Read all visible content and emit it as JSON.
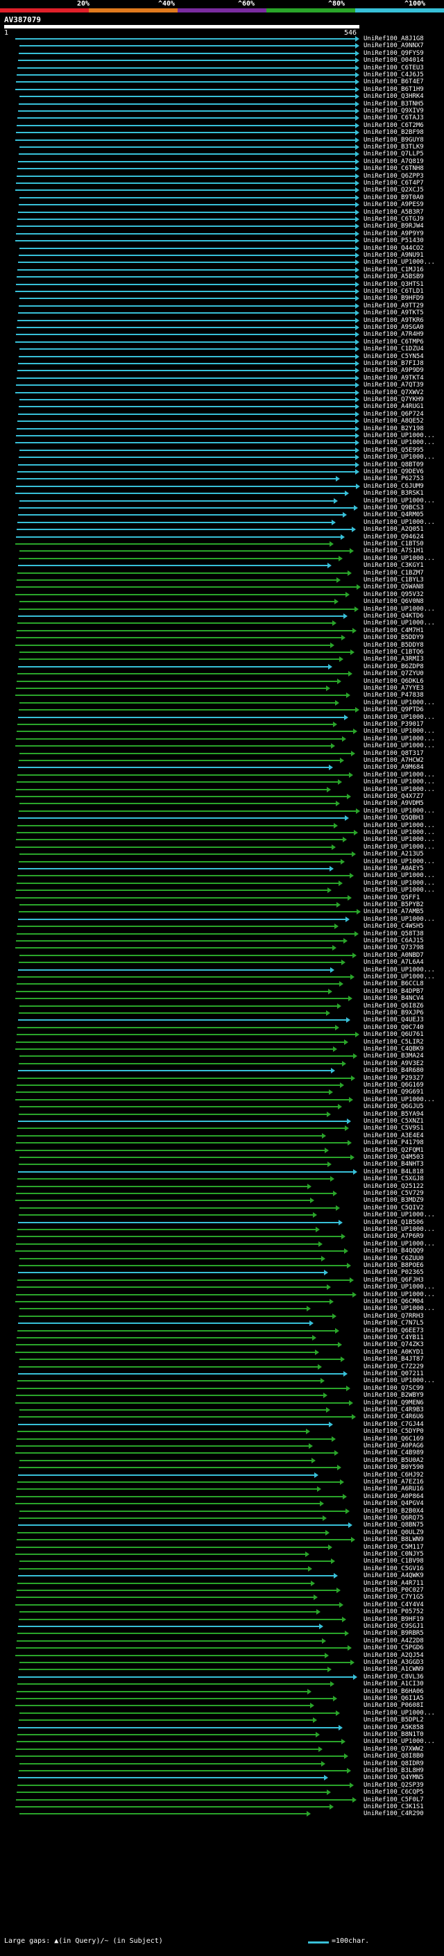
{
  "legend": {
    "labels": [
      "20%",
      "^40%",
      "^60%",
      "^80%",
      "^100%"
    ],
    "colors": [
      "#e0202a",
      "#e07a1e",
      "#7a2ca0",
      "#2aa52a",
      "#38c0d8"
    ]
  },
  "query": {
    "title": "AV387079",
    "start": "1",
    "end": "546"
  },
  "hit_colors": {
    "high": "#38c0d8",
    "mid": "#2aa52a"
  },
  "hits": [
    "UniRef100_A8J1G8",
    "UniRef100_A9NNX7",
    "UniRef100_Q9FYS9",
    "UniRef100_O04014",
    "UniRef100_C6TEU3",
    "UniRef100_C4J6J5",
    "UniRef100_B6T4E7",
    "UniRef100_B6T1H9",
    "UniRef100_Q3HRK4",
    "UniRef100_B3TNH5",
    "UniRef100_Q9XIV9",
    "UniRef100_C6TAJ3",
    "UniRef100_C6T2M6",
    "UniRef100_B2BF98",
    "UniRef100_B9GUY8",
    "UniRef100_B3TLK9",
    "UniRef100_Q7LLP5",
    "UniRef100_A7Q819",
    "UniRef100_C6TNH8",
    "UniRef100_Q6ZPP3",
    "UniRef100_C6T4P7",
    "UniRef100_Q2XCJ5",
    "UniRef100_B9T0A0",
    "UniRef100_A9PES9",
    "UniRef100_A5B3R7",
    "UniRef100_C6TGJ9",
    "UniRef100_B9RJW4",
    "UniRef100_A9P9Y9",
    "UniRef100_P51430",
    "UniRef100_Q44CO2",
    "UniRef100_A9NU91",
    "UniRef100_UP1000...",
    "UniRef100_C1MJ16",
    "UniRef100_A5BSB9",
    "UniRef100_Q3HTS1",
    "UniRef100_C6TLD1",
    "UniRef100_B9HFD9",
    "UniRef100_A9TT29",
    "UniRef100_A9TKT5",
    "UniRef100_A9TKR6",
    "UniRef100_A9SGA0",
    "UniRef100_A7R4H9",
    "UniRef100_C6TMP6",
    "UniRef100_C1DZU4",
    "UniRef100_C5YN54",
    "UniRef100_B7FIJ8",
    "UniRef100_A9P9D9",
    "UniRef100_A9TKT4",
    "UniRef100_A7QT39",
    "UniRef100_Q7XWV2",
    "UniRef100_Q7YKH9",
    "UniRef100_A4RUG1",
    "UniRef100_Q6P724",
    "UniRef100_A8QE52",
    "UniRef100_B2Y198",
    "UniRef100_UP1000...",
    "UniRef100_UP1000...",
    "UniRef100_Q5E995",
    "UniRef100_UP1000...",
    "UniRef100_Q8BT09",
    "UniRef100_Q9DEV6",
    "UniRef100_P62753",
    "UniRef100_C6JUM9",
    "UniRef100_B3RSK1",
    "UniRef100_UP1000...",
    "UniRef100_Q9BCS3",
    "UniRef100_Q4RM05",
    "UniRef100_UP1000...",
    "UniRef100_A2Q051",
    "UniRef100_Q94624",
    "UniRef100_C1BTS0",
    "UniRef100_A7S1H1",
    "UniRef100_UP1000...",
    "UniRef100_C3KGY1",
    "UniRef100_C1BZM7",
    "UniRef100_C1BYL3",
    "UniRef100_Q5WAN8",
    "UniRef100_Q95V32",
    "UniRef100_Q6V0N8",
    "UniRef100_UP1000...",
    "UniRef100_Q4KTD6",
    "UniRef100_UP1000...",
    "UniRef100_C4M7H1",
    "UniRef100_B5DDY9",
    "UniRef100_B5DDY8",
    "UniRef100_C1BTQ6",
    "UniRef100_A3RMI3",
    "UniRef100_B6ZDP8",
    "UniRef100_Q7ZYU0",
    "UniRef100_Q6DKL6",
    "UniRef100_A7YYE3",
    "UniRef100_P47838",
    "UniRef100_UP1000...",
    "UniRef100_Q9PTD6",
    "UniRef100_UP1000...",
    "UniRef100_P39017",
    "UniRef100_UP1000...",
    "UniRef100_UP1000...",
    "UniRef100_UP1000...",
    "UniRef100_Q8T317",
    "UniRef100_A7HCW2",
    "UniRef100_A9M684",
    "UniRef100_UP1000...",
    "UniRef100_UP1000...",
    "UniRef100_UP1000...",
    "UniRef100_Q4X7Z7",
    "UniRef100_A9VDM5",
    "UniRef100_UP1000...",
    "UniRef100_Q5QBH3",
    "UniRef100_UP1000...",
    "UniRef100_UP1000...",
    "UniRef100_UP1000...",
    "UniRef100_UP1000...",
    "UniRef100_A213U5",
    "UniRef100_UP1000...",
    "UniRef100_A0AEY5",
    "UniRef100_UP1000...",
    "UniRef100_UP1000...",
    "UniRef100_UP1000...",
    "UniRef100_Q5FF1",
    "UniRef100_B5PYB2",
    "UniRef100_A7AMB5",
    "UniRef100_UP1000...",
    "UniRef100_C4WSH5",
    "UniRef100_Q58T38",
    "UniRef100_C6AJ15",
    "UniRef100_Q73798",
    "UniRef100_A0NBD7",
    "UniRef100_A7L6A4",
    "UniRef100_UP1000...",
    "UniRef100_UP1000...",
    "UniRef100_B6CCL8",
    "UniRef100_B4DPB7",
    "UniRef100_B4NCV4",
    "UniRef100_Q6I8Z6",
    "UniRef100_B9XJP6",
    "UniRef100_Q4UEJ3",
    "UniRef100_Q0C740",
    "UniRef100_Q6U761",
    "UniRef100_C5LIR2",
    "UniRef100_C4QBK9",
    "UniRef100_B3MA24",
    "UniRef100_A9V3E2",
    "UniRef100_B4R680",
    "UniRef100_P29327",
    "UniRef100_Q6G169",
    "UniRef100_Q9G691",
    "UniRef100_UP1000...",
    "UniRef100_Q6GJU5",
    "UniRef100_B5YA94",
    "UniRef100_C5XNZ1",
    "UniRef100_C5V9S1",
    "UniRef100_A3E4E4",
    "UniRef100_P41798",
    "UniRef100_Q2FQM1",
    "UniRef100_Q4M503",
    "UniRef100_B4NHT3",
    "UniRef100_B4L818",
    "UniRef100_C5XGJ8",
    "UniRef100_Q25122",
    "UniRef100_C5V729",
    "UniRef100_B3MDZ9",
    "UniRef100_C5QIV2",
    "UniRef100_UP1000...",
    "UniRef100_Q1B506",
    "UniRef100_UP1000...",
    "UniRef100_A7P6R9",
    "UniRef100_UP1000...",
    "UniRef100_B4QQQ9",
    "UniRef100_C6ZUU0",
    "UniRef100_B8POE6",
    "UniRef100_P02365",
    "UniRef100_Q6FJH3",
    "UniRef100_UP1000...",
    "UniRef100_UP1000...",
    "UniRef100_Q6CM04",
    "UniRef100_UP1000...",
    "UniRef100_Q7RRH3",
    "UniRef100_C7N7L5",
    "UniRef100_Q6EE73",
    "UniRef100_C4YB11",
    "UniRef100_Q74ZK3",
    "UniRef100_A0KYD1",
    "UniRef100_B4JT87",
    "UniRef100_C7Z229",
    "UniRef100_Q07211",
    "UniRef100_UP1000...",
    "UniRef100_Q7SC99",
    "UniRef100_B2WBY9",
    "UniRef100_Q9MEN6",
    "UniRef100_C4R9B3",
    "UniRef100_C4R6U6",
    "UniRef100_C7GJ44",
    "UniRef100_C5DYP0",
    "UniRef100_Q6C169",
    "UniRef100_A0PAG6",
    "UniRef100_C4B989",
    "UniRef100_B5U0A2",
    "UniRef100_B0Y590",
    "UniRef100_C6HJ92",
    "UniRef100_A7EZ16",
    "UniRef100_A6RU16",
    "UniRef100_A0P864",
    "UniRef100_Q4PGV4",
    "UniRef100_B2B0X4",
    "UniRef100_Q6RQ75",
    "UniRef100_Q8BN75",
    "UniRef100_Q0ULZ9",
    "UniRef100_B8LWN9",
    "UniRef100_C5M117",
    "UniRef100_C0NJY5",
    "UniRef100_C1BV98",
    "UniRef100_C5GV16",
    "UniRef100_A4QWK9",
    "UniRef100_A4R711",
    "UniRef100_P0C027",
    "UniRef100_C7Y1G5",
    "UniRef100_C4Y4V4",
    "UniRef100_P05752",
    "UniRef100_B9HF19",
    "UniRef100_C9SGJ1",
    "UniRef100_B9RBR5",
    "UniRef100_A4Z2D8",
    "UniRef100_C5PGD6",
    "UniRef100_A2QJ54",
    "UniRef100_A3GGD3",
    "UniRef100_A1CWN9",
    "UniRef100_C8VL36",
    "UniRef100_A1CI30",
    "UniRef100_B6HA06",
    "UniRef100_Q6I1A5",
    "UniRef100_P0608I",
    "UniRef100_UP1000...",
    "UniRef100_B5DPL2",
    "UniRef100_A5K858",
    "UniRef100_B8N1T0",
    "UniRef100_UP1000...",
    "UniRef100_Q7XWW2",
    "UniRef100_Q8I8B0",
    "UniRef100_Q8IDR9",
    "UniRef100_B3L8H9",
    "UniRef100_Q4YMN5",
    "UniRef100_Q2SP39",
    "UniRef100_C6CQP5",
    "UniRef100_C5F0L7",
    "UniRef100_C3K1S1",
    "UniRef100_C4R290"
  ],
  "footer": {
    "gap_label": "Large gaps: ▲(in Query)/~ (in Subject)",
    "scale_label": "=100char."
  }
}
